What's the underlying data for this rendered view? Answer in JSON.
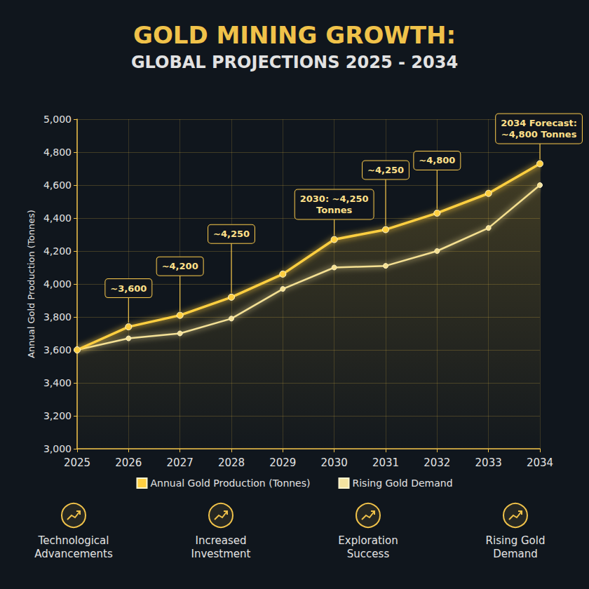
{
  "chart_data": {
    "type": "line",
    "title": "GOLD MINING GROWTH:",
    "subtitle": "GLOBAL PROJECTIONS 2025 - 2034",
    "y_label": "Annual Gold Production (Tonnes)",
    "categories": [
      "2025",
      "2026",
      "2027",
      "2028",
      "2029",
      "2030",
      "2031",
      "2032",
      "2033",
      "2034"
    ],
    "series": [
      {
        "name": "Annual Gold Production (Tonnes)",
        "color": "#ffcf40",
        "values": [
          3600,
          3740,
          3810,
          3920,
          4060,
          4270,
          4330,
          4430,
          4550,
          4730
        ]
      },
      {
        "name": "Rising Gold Demand",
        "color": "#f3e3a0",
        "values": [
          3600,
          3670,
          3700,
          3790,
          3970,
          4100,
          4110,
          4200,
          4340,
          4600
        ]
      }
    ],
    "ylim": [
      3000,
      5000
    ],
    "yticks": [
      {
        "value": 3000,
        "label": "3,000"
      },
      {
        "value": 3200,
        "label": "3,200"
      },
      {
        "value": 3400,
        "label": "3,400"
      },
      {
        "value": 3600,
        "label": "3,600"
      },
      {
        "value": 3800,
        "label": "3,800"
      },
      {
        "value": 4000,
        "label": "4,000"
      },
      {
        "value": 4200,
        "label": "4,200"
      },
      {
        "value": 4400,
        "label": "4,400"
      },
      {
        "value": 4600,
        "label": "4,600"
      },
      {
        "value": 4800,
        "label": "4,800"
      },
      {
        "value": 5000,
        "label": "5,000"
      }
    ],
    "grid": true,
    "legend": "bottom",
    "marker": "circle",
    "annotations": [
      {
        "text": "~3,600",
        "x": "2026"
      },
      {
        "text": "~4,200",
        "x": "2027"
      },
      {
        "text": "~4,250",
        "x": "2028"
      },
      {
        "text": "2030: ~4,250 Tonnes",
        "x": "2030"
      },
      {
        "text": "~4,250",
        "x": "2031"
      },
      {
        "text": "~4,800",
        "x": "2032"
      },
      {
        "text": "2034 Forecast: ~4,800 Tonnes",
        "x": "2034"
      }
    ],
    "factors": [
      "Technological Advancements",
      "Increased Investment",
      "Exploration Success",
      "Rising Gold Demand"
    ]
  }
}
